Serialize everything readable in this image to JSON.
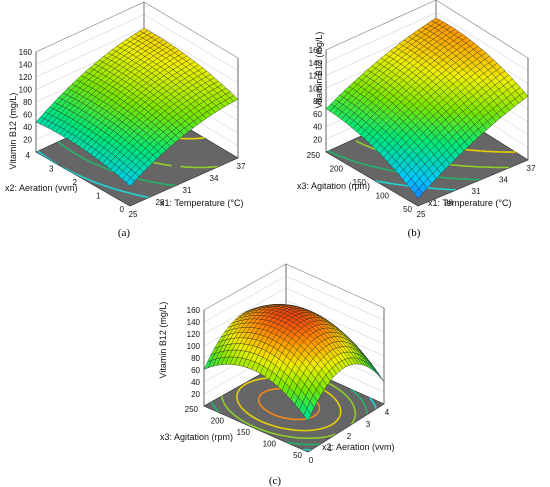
{
  "chart_data": [
    {
      "type": "surface",
      "panel_label": "(a)",
      "zlabel": "Vitamin B12 (mg/L)",
      "z_ticks": [
        "20",
        "40",
        "60",
        "80",
        "100",
        "120",
        "140",
        "160"
      ],
      "zlim": [
        0,
        160
      ],
      "xlabel": "x1: Temperature (°C)",
      "x_ticks": [
        "25",
        "28",
        "31",
        "34",
        "37"
      ],
      "xlim": [
        25,
        37
      ],
      "ylabel": "x2: Aeration (vvm)",
      "y_ticks": [
        "0",
        "1",
        "2",
        "3",
        "4"
      ],
      "ylim": [
        0,
        4
      ],
      "model": {
        "a": 93,
        "bx": 33,
        "by": 10,
        "cx": -12,
        "cy": -8,
        "dxy": 2
      },
      "contour_levels": [
        50,
        70,
        90,
        110,
        130
      ]
    },
    {
      "type": "surface",
      "panel_label": "(b)",
      "zlabel": "Vitamin B12 (mg/L)",
      "z_ticks": [
        "20",
        "40",
        "60",
        "80",
        "100",
        "120",
        "140",
        "160"
      ],
      "zlim": [
        0,
        160
      ],
      "xlabel": "x1: Temperature (°C)",
      "x_ticks": [
        "25",
        "28",
        "31",
        "34",
        "37"
      ],
      "xlim": [
        25,
        37
      ],
      "ylabel": "x3: Agitation (rpm)",
      "y_ticks": [
        "50",
        "100",
        "150",
        "200",
        "250"
      ],
      "ylim": [
        50,
        250
      ],
      "model": {
        "a": 98,
        "bx": 38,
        "by": 22,
        "cx": -8,
        "cy": -12,
        "dxy": -6
      },
      "contour_levels": [
        50,
        70,
        90,
        110,
        130
      ]
    },
    {
      "type": "surface",
      "panel_label": "(c)",
      "zlabel": "Vitamin B12 (mg/L)",
      "z_ticks": [
        "20",
        "40",
        "60",
        "80",
        "100",
        "120",
        "140",
        "160"
      ],
      "zlim": [
        0,
        160
      ],
      "xlabel": "x2: Aeration (vvm)",
      "x_ticks": [
        "0",
        "1",
        "2",
        "3",
        "4"
      ],
      "xlim": [
        0,
        4
      ],
      "ylabel": "x3: Agitation (rpm)",
      "y_ticks": [
        "50",
        "100",
        "150",
        "200",
        "250"
      ],
      "ylim": [
        50,
        250
      ],
      "model": {
        "a": 150,
        "bx": -4,
        "by": 8,
        "cx": -58,
        "cy": -40,
        "dxy": 3
      },
      "contour_levels": [
        60,
        80,
        100,
        120,
        140
      ]
    }
  ]
}
